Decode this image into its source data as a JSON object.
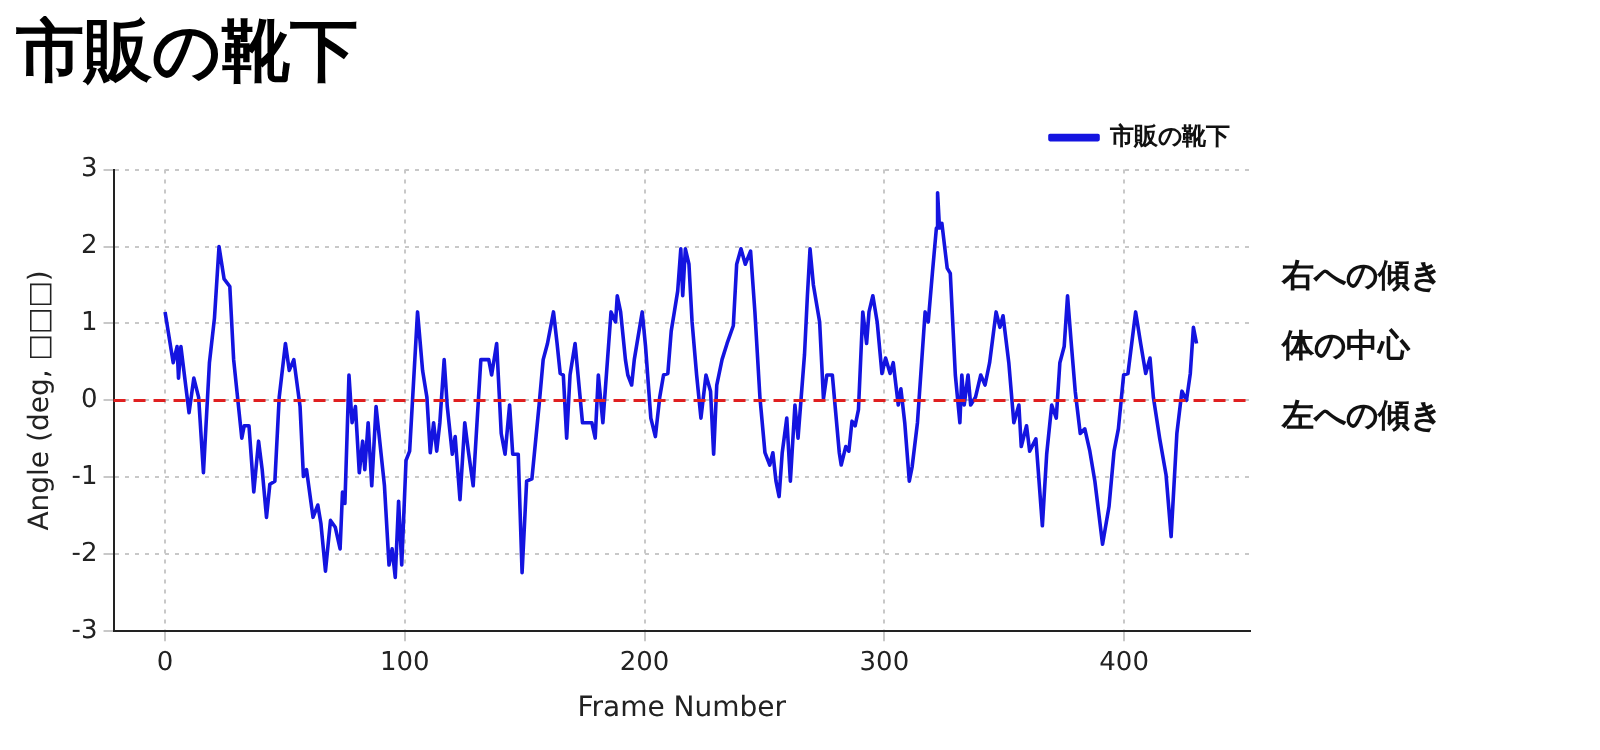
{
  "chart_data": {
    "type": "line",
    "title": "市販の靴下",
    "xlabel": "Frame Number",
    "ylabel": "Angle (deg, □□□)",
    "x": [
      0,
      3.4,
      5,
      5.6,
      6.6,
      10,
      12,
      14,
      16,
      18.5,
      20.6,
      22.5,
      24.6,
      27,
      28.6,
      32,
      33,
      35,
      37,
      39,
      40.5,
      42.3,
      43.7,
      45.8,
      47.6,
      50.2,
      51.8,
      53.7,
      56.3,
      57.7,
      59,
      61.7,
      63.7,
      65,
      66.9,
      69,
      71,
      73,
      74,
      75,
      76.7,
      78,
      79.4,
      81,
      82.4,
      83.3,
      84.7,
      86.2,
      88,
      91.5,
      93.4,
      94.7,
      96,
      97.4,
      98.7,
      100.5,
      102,
      105.3,
      107.4,
      109.2,
      110.6,
      112,
      113.3,
      114.6,
      116.4,
      117.7,
      119.8,
      121,
      123,
      125,
      126.5,
      128.5,
      131.7,
      135,
      136.2,
      138.3,
      140.2,
      141.8,
      143.7,
      145,
      147.3,
      148.9,
      150.8,
      153,
      156,
      157.7,
      159.5,
      162,
      163.5,
      164.8,
      166.1,
      167.5,
      168.9,
      171,
      174.1,
      178,
      179.4,
      180.7,
      182.6,
      186,
      187.9,
      188.6,
      190,
      192,
      193,
      194.6,
      195.7,
      199,
      200.4,
      202.6,
      204.5,
      206.3,
      207.9,
      209.7,
      211.1,
      212.4,
      213.8,
      215.1,
      215.9,
      217,
      218.5,
      219.8,
      221.7,
      223.5,
      225.6,
      227.5,
      228.8,
      230.1,
      232.3,
      234.4,
      237,
      238.4,
      240.2,
      242,
      244.2,
      246,
      248.1,
      250.2,
      252.2,
      253.5,
      254.8,
      256.1,
      257.4,
      259.3,
      260.8,
      262.7,
      264,
      266.7,
      267.9,
      269,
      270.4,
      273,
      274.6,
      276,
      278.3,
      281.2,
      282,
      283.9,
      285.2,
      286.5,
      287.8,
      289.2,
      291,
      292.6,
      293.6,
      295.2,
      297,
      299,
      300.5,
      302.4,
      303.7,
      305.8,
      306.9,
      308.5,
      310.4,
      311.6,
      313.8,
      317,
      318.3,
      320.1,
      321.7,
      322.2,
      323,
      324,
      326.2,
      327.5,
      329.6,
      331.5,
      332.3,
      333.3,
      334.9,
      336,
      338,
      340.2,
      342,
      343.9,
      346.6,
      348.2,
      349.5,
      351.9,
      354,
      356.1,
      357.1,
      359.3,
      360.6,
      363.2,
      365.9,
      367.7,
      369.8,
      371.7,
      373.2,
      375,
      376.4,
      377.8,
      379.6,
      381.7,
      383.6,
      385.7,
      387.8,
      391,
      393.7,
      395.8,
      397.6,
      399.8,
      401.6,
      404.8,
      406.9,
      409,
      410.8,
      412.2,
      414.8,
      417.5,
      419.6,
      422,
      424.1,
      426,
      427.6,
      428.9,
      430.2
    ],
    "series": [
      {
        "name": "市販の靴下",
        "color": "#1414e0",
        "values": [
          1.15,
          0.49,
          0.7,
          0.29,
          0.7,
          -0.16,
          0.29,
          0.04,
          -0.94,
          0.49,
          1.07,
          2.0,
          1.58,
          1.48,
          0.53,
          -0.49,
          -0.33,
          -0.33,
          -1.19,
          -0.53,
          -0.9,
          -1.52,
          -1.09,
          -1.05,
          0.04,
          0.74,
          0.39,
          0.53,
          -0.08,
          -0.99,
          -0.9,
          -1.52,
          -1.36,
          -1.6,
          -2.22,
          -1.56,
          -1.65,
          -1.93,
          -1.19,
          -1.34,
          0.33,
          -0.29,
          -0.08,
          -0.94,
          -0.53,
          -0.9,
          -0.29,
          -1.11,
          -0.08,
          -1.11,
          -2.14,
          -1.93,
          -2.3,
          -1.31,
          -2.14,
          -0.78,
          -0.66,
          1.15,
          0.39,
          0.04,
          -0.68,
          -0.29,
          -0.66,
          -0.29,
          0.53,
          -0.08,
          -0.7,
          -0.47,
          -1.29,
          -0.29,
          -0.66,
          -1.11,
          0.53,
          0.53,
          0.33,
          0.74,
          -0.43,
          -0.7,
          -0.06,
          -0.7,
          -0.7,
          -2.24,
          -1.05,
          -1.02,
          -0.06,
          0.53,
          0.74,
          1.15,
          0.74,
          0.35,
          0.33,
          -0.49,
          0.33,
          0.74,
          -0.29,
          -0.29,
          -0.49,
          0.33,
          -0.29,
          1.15,
          1.02,
          1.36,
          1.15,
          0.53,
          0.33,
          0.2,
          0.53,
          1.15,
          0.7,
          -0.23,
          -0.47,
          0.04,
          0.33,
          0.35,
          0.9,
          1.15,
          1.42,
          1.97,
          1.36,
          1.97,
          1.77,
          1.02,
          0.33,
          -0.23,
          0.33,
          0.12,
          -0.7,
          0.2,
          0.53,
          0.74,
          0.97,
          1.77,
          1.97,
          1.77,
          1.94,
          1.15,
          0.04,
          -0.68,
          -0.84,
          -0.68,
          -1.05,
          -1.25,
          -0.68,
          -0.23,
          -1.05,
          -0.06,
          -0.49,
          0.6,
          1.36,
          1.97,
          1.5,
          1.02,
          0.02,
          0.33,
          0.33,
          -0.68,
          -0.84,
          -0.6,
          -0.66,
          -0.27,
          -0.33,
          -0.12,
          1.15,
          0.74,
          1.15,
          1.36,
          1.02,
          0.35,
          0.55,
          0.35,
          0.49,
          -0.06,
          0.15,
          -0.29,
          -1.05,
          -0.86,
          -0.29,
          1.15,
          1.02,
          1.68,
          2.24,
          2.7,
          2.24,
          2.3,
          1.72,
          1.65,
          0.33,
          -0.29,
          0.33,
          -0.06,
          0.33,
          -0.06,
          0.04,
          0.33,
          0.2,
          0.49,
          1.15,
          0.95,
          1.1,
          0.49,
          -0.29,
          -0.06,
          -0.6,
          -0.33,
          -0.66,
          -0.5,
          -1.63,
          -0.7,
          -0.06,
          -0.23,
          0.49,
          0.7,
          1.36,
          0.8,
          0.12,
          -0.43,
          -0.37,
          -0.66,
          -1.05,
          -1.87,
          -1.38,
          -0.66,
          -0.37,
          0.33,
          0.35,
          1.15,
          0.74,
          0.35,
          0.55,
          0.04,
          -0.49,
          -0.97,
          -1.77,
          -0.43,
          0.12,
          0,
          0.35,
          0.95,
          0.74
        ]
      }
    ],
    "xlim": [
      -21.5,
      452.5
    ],
    "xticks": [
      0,
      100,
      200,
      300,
      400
    ],
    "ylim": [
      -3,
      3
    ],
    "yticks": [
      -3,
      -2,
      -1,
      0,
      1,
      2,
      3
    ],
    "grid": true,
    "legend": "top right",
    "ref_lines": [
      {
        "axis": "y",
        "value": 0,
        "color": "#e02020",
        "line_style": "dashed"
      }
    ],
    "annotations": [
      "右への傾き",
      "体の中心",
      "左への傾き"
    ]
  }
}
